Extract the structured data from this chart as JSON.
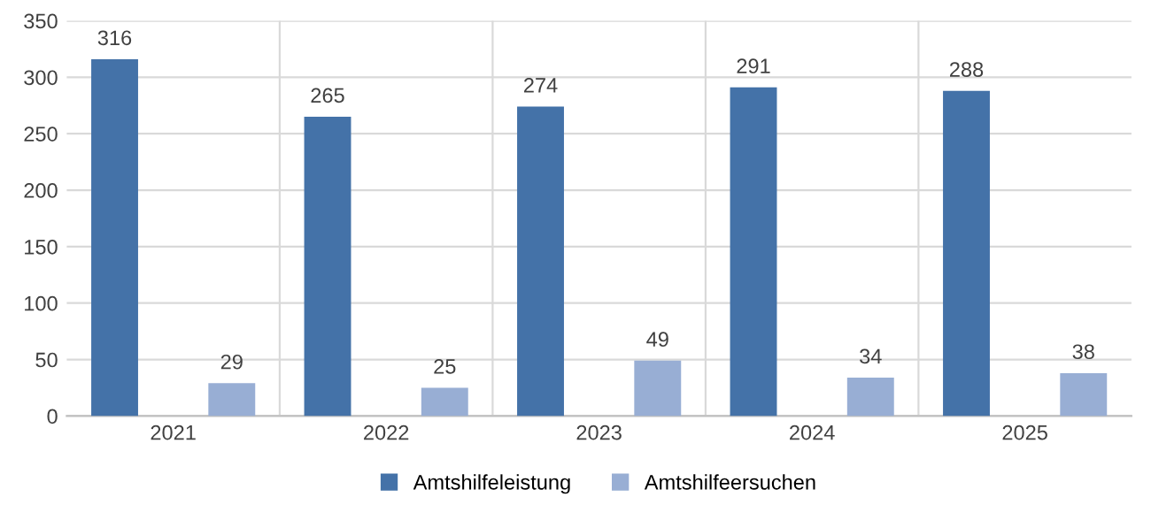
{
  "chart_data": {
    "type": "bar",
    "categories": [
      "2021",
      "2022",
      "2023",
      "2024",
      "2025"
    ],
    "series": [
      {
        "name": "Amtshilfeleistung",
        "color": "#4472a8",
        "values": [
          316,
          265,
          274,
          291,
          288
        ]
      },
      {
        "name": "Amtshilfeersuchen",
        "color": "#98aed4",
        "values": [
          29,
          25,
          49,
          34,
          38
        ]
      }
    ],
    "ylim": [
      0,
      350
    ],
    "yticks": [
      0,
      50,
      100,
      150,
      200,
      250,
      300,
      350
    ],
    "grid": true,
    "legend": "bottom",
    "data_labels": true
  }
}
